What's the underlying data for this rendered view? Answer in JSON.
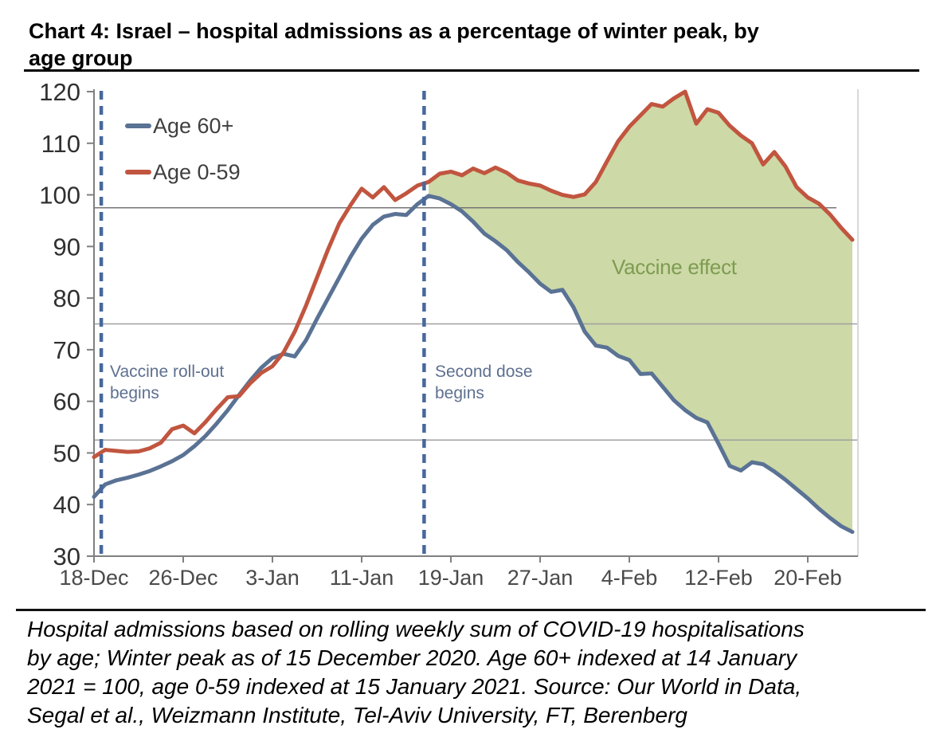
{
  "title": {
    "lines": [
      "Chart 4: Israel – hospital admissions as a percentage of winter peak, by",
      "age group"
    ]
  },
  "footnote": {
    "lines": [
      "Hospital admissions based on rolling weekly sum of COVID-19 hospitalisations",
      "by age; Winter peak as of 15 December 2020. Age 60+ indexed at 14 January",
      "2021 = 100, age 0-59 indexed at 15 January 2021. Source: Our World in Data,",
      "Segal et al., Weizmann Institute, Tel-Aviv University, FT, Berenberg"
    ]
  },
  "chart_data": {
    "type": "line",
    "title": "Israel hospital admissions as % of winter peak, by age group",
    "xlabel": "",
    "ylabel": "",
    "x_start_date": "18-Dec-2020",
    "x_unit": "days",
    "x_tick_labels": [
      "18-Dec",
      "26-Dec",
      "3-Jan",
      "11-Jan",
      "19-Jan",
      "27-Jan",
      "4-Feb",
      "12-Feb",
      "20-Feb"
    ],
    "x_tick_days": [
      0,
      8,
      16,
      24,
      32,
      40,
      48,
      56,
      64
    ],
    "ylim": [
      30,
      120
    ],
    "y_tick_step": 10,
    "gridline_values": [
      97.5,
      75,
      52.5
    ],
    "grid": "horizontal-only",
    "legend_position": "top-left-inside",
    "series": [
      {
        "name": "Age 60+",
        "color": "#5a7294",
        "values": [
          41.5,
          43.9,
          44.7,
          45.2,
          45.8,
          46.5,
          47.4,
          48.4,
          49.6,
          51.3,
          53.3,
          55.7,
          58.3,
          61.2,
          64.0,
          66.5,
          68.4,
          69.2,
          68.7,
          71.8,
          76.0,
          80.0,
          84.0,
          88.0,
          91.5,
          94.2,
          95.8,
          96.3,
          96.1,
          98.2,
          99.8,
          99.3,
          98.2,
          96.8,
          94.8,
          92.5,
          91.0,
          89.3,
          87.0,
          85.0,
          82.8,
          81.2,
          81.6,
          78.2,
          73.5,
          70.8,
          70.4,
          68.8,
          68.0,
          65.3,
          65.4,
          62.8,
          60.2,
          58.3,
          56.8,
          55.9,
          51.8,
          47.5,
          46.6,
          48.2,
          47.8,
          46.4,
          44.8,
          43.0,
          41.2,
          39.2,
          37.4,
          35.8,
          34.7
        ]
      },
      {
        "name": "Age 0-59",
        "color": "#c1553f",
        "values": [
          49.2,
          50.6,
          50.4,
          50.2,
          50.3,
          50.9,
          52.0,
          54.6,
          55.3,
          53.8,
          56.0,
          58.5,
          60.8,
          61.0,
          63.5,
          65.5,
          66.8,
          69.5,
          73.5,
          78.5,
          84.0,
          89.5,
          94.5,
          98.0,
          101.2,
          99.5,
          101.5,
          99.0,
          100.3,
          101.8,
          102.5,
          104.1,
          104.5,
          103.8,
          105.1,
          104.2,
          105.3,
          104.3,
          102.8,
          102.2,
          101.8,
          100.8,
          100.0,
          99.6,
          100.1,
          102.5,
          106.5,
          110.4,
          113.2,
          115.4,
          117.6,
          117.1,
          118.7,
          120.0,
          113.8,
          116.6,
          115.9,
          113.4,
          111.5,
          110.0,
          105.9,
          108.3,
          105.5,
          101.5,
          99.5,
          98.3,
          96.2,
          93.6,
          91.3
        ]
      }
    ],
    "fill_between": {
      "label": "Vaccine effect",
      "color": "#cdd9a6",
      "label_color": "#7d9c52",
      "start_index": 30,
      "between": [
        "Age 0-59",
        "Age 60+"
      ]
    },
    "events": [
      {
        "label": "Vaccine roll-out begins",
        "day": 0.65
      },
      {
        "label": "Second dose begins",
        "day": 29.6
      }
    ],
    "event_line_color": "#47689c"
  }
}
